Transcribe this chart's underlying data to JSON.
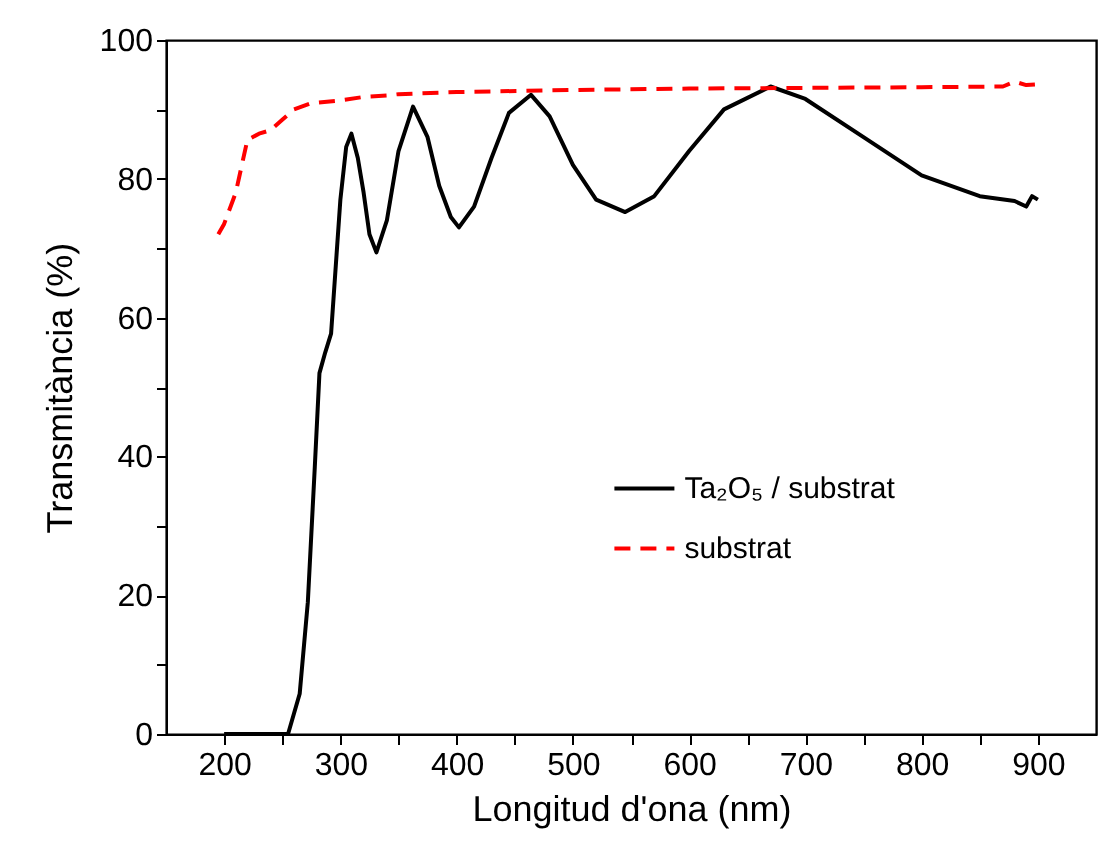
{
  "chart_data": {
    "type": "line",
    "xlabel": "Longitud d'ona (nm)",
    "ylabel": "Transmitància (%)",
    "xlim": [
      150,
      950
    ],
    "ylim": [
      0,
      100
    ],
    "xticks": [
      200,
      {
        "value": 250,
        "label": null
      },
      300,
      {
        "value": 350,
        "label": null
      },
      400,
      {
        "value": 450,
        "label": null
      },
      500,
      {
        "value": 550,
        "label": null
      },
      600,
      {
        "value": 650,
        "label": null
      },
      700,
      {
        "value": 750,
        "label": null
      },
      800,
      {
        "value": 850,
        "label": null
      },
      900
    ],
    "yticks": [
      0,
      {
        "value": 10,
        "label": null
      },
      20,
      {
        "value": 30,
        "label": null
      },
      40,
      {
        "value": 50,
        "label": null
      },
      60,
      {
        "value": 70,
        "label": null
      },
      80,
      {
        "value": 90,
        "label": null
      },
      100
    ],
    "legend": "right",
    "grid": false,
    "marker": "none",
    "series": [
      {
        "name": "Ta₂O₅ / substrat",
        "color": "#000000",
        "line_style": "solid",
        "x": [
          200,
          250,
          255,
          265,
          272,
          278,
          282,
          287,
          292,
          300,
          305,
          309.5,
          315,
          320,
          325,
          331,
          340,
          350,
          362.5,
          375,
          385,
          395,
          402,
          415,
          430,
          445,
          464,
          480,
          500,
          520,
          545,
          570,
          600,
          630,
          670,
          700,
          750,
          800,
          850,
          880,
          890,
          895,
          900
        ],
        "values": [
          0,
          0,
          0,
          5.8,
          19,
          38.5,
          52,
          55,
          57.7,
          77,
          84.6,
          86.5,
          83,
          78,
          72,
          69.4,
          74,
          84,
          90.4,
          86,
          79,
          74.5,
          73,
          76,
          83,
          89.5,
          92.1,
          89,
          82,
          77,
          75.2,
          77.5,
          84,
          90,
          93.3,
          91.5,
          86,
          80.5,
          77.5,
          76.8,
          76,
          77.5,
          77
        ]
      },
      {
        "name": "substrat",
        "color": "#ff0000",
        "line_style": "dashed",
        "x": [
          195,
          200,
          210,
          220,
          230,
          240,
          250,
          260,
          275,
          300,
          320,
          340,
          350,
          400,
          500,
          600,
          700,
          800,
          870,
          880,
          890,
          900
        ],
        "values": [
          72,
          73.5,
          78,
          85.6,
          86.5,
          87,
          88.5,
          90,
          90.9,
          91.3,
          91.8,
          92,
          92.2,
          92.5,
          92.8,
          93,
          93.1,
          93.2,
          93.3,
          94,
          93.5,
          93.6
        ]
      }
    ]
  }
}
